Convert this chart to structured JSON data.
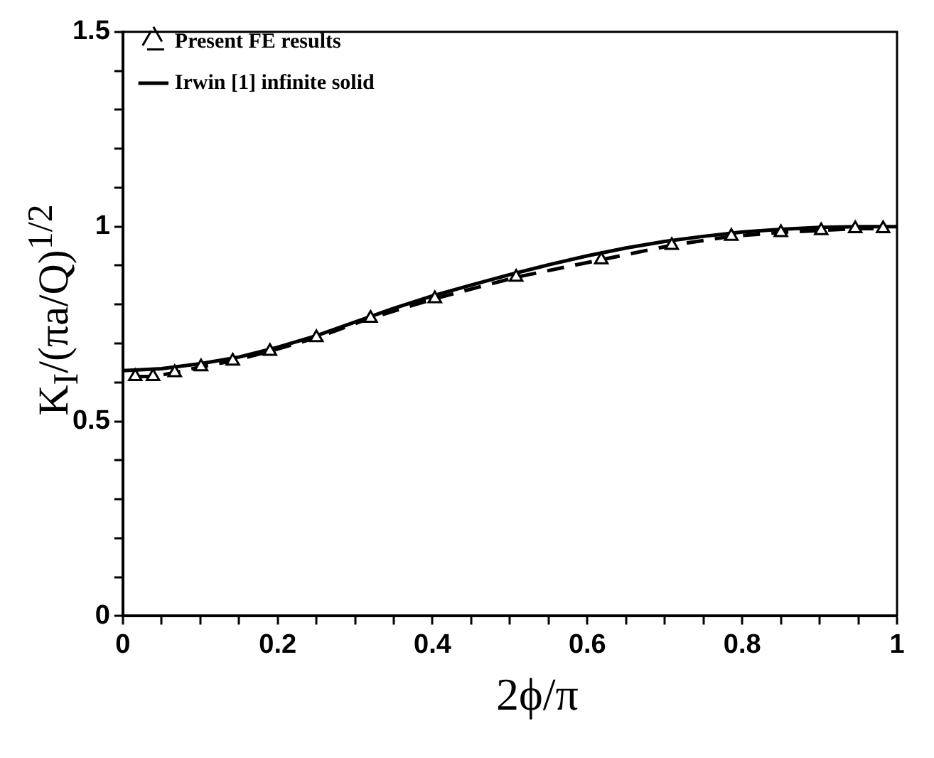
{
  "chart_data": {
    "type": "line",
    "xlabel": "2ϕ/π",
    "ylabel": "K$_{I}$/(πa/Q)$^{1/2}$",
    "xlim": [
      0,
      1
    ],
    "ylim": [
      0,
      1.5
    ],
    "xticks": [
      0,
      {
        "value": 0.05,
        "label": null
      },
      {
        "value": 0.1,
        "label": null
      },
      {
        "value": 0.15,
        "label": null
      },
      0.2,
      {
        "value": 0.25,
        "label": null
      },
      {
        "value": 0.3,
        "label": null
      },
      {
        "value": 0.35,
        "label": null
      },
      0.4,
      {
        "value": 0.45,
        "label": null
      },
      {
        "value": 0.5,
        "label": null
      },
      {
        "value": 0.55,
        "label": null
      },
      0.6,
      {
        "value": 0.65,
        "label": null
      },
      {
        "value": 0.7,
        "label": null
      },
      {
        "value": 0.75,
        "label": null
      },
      0.8,
      {
        "value": 0.85,
        "label": null
      },
      {
        "value": 0.9,
        "label": null
      },
      {
        "value": 0.95,
        "label": null
      },
      1
    ],
    "yticks": [
      0,
      {
        "value": 0.1,
        "label": null
      },
      {
        "value": 0.2,
        "label": null
      },
      {
        "value": 0.3,
        "label": null
      },
      {
        "value": 0.4,
        "label": null
      },
      0.5,
      {
        "value": 0.6,
        "label": null
      },
      {
        "value": 0.7,
        "label": null
      },
      {
        "value": 0.8,
        "label": null
      },
      {
        "value": 0.9,
        "label": null
      },
      1,
      {
        "value": 1.1,
        "label": null
      },
      {
        "value": 1.2,
        "label": null
      },
      {
        "value": 1.3,
        "label": null
      },
      {
        "value": 1.4,
        "label": null
      },
      1.5
    ],
    "grid": false,
    "legend": "top left",
    "series": [
      {
        "name": "Present FE results",
        "color": "#000000",
        "marker": "triangle",
        "line_style": "dashed",
        "x": [
          0.016,
          0.039,
          0.067,
          0.101,
          0.142,
          0.19,
          0.25,
          0.32,
          0.403,
          0.508,
          0.618,
          0.709,
          0.786,
          0.85,
          0.902,
          0.946,
          0.982
        ],
        "values": [
          0.615,
          0.615,
          0.625,
          0.64,
          0.655,
          0.68,
          0.715,
          0.765,
          0.815,
          0.87,
          0.915,
          0.952,
          0.975,
          0.985,
          0.99,
          0.995,
          0.995
        ]
      },
      {
        "name": "Irwin [1] infinite solid",
        "color": "#000000",
        "marker": "none",
        "line_style": "solid",
        "x": [
          0,
          0.05,
          0.1,
          0.15,
          0.2,
          0.25,
          0.3,
          0.35,
          0.4,
          0.45,
          0.5,
          0.55,
          0.6,
          0.65,
          0.7,
          0.75,
          0.8,
          0.85,
          0.9,
          0.95,
          1
        ],
        "values": [
          0.63,
          0.635,
          0.648,
          0.665,
          0.69,
          0.72,
          0.755,
          0.79,
          0.822,
          0.85,
          0.877,
          0.902,
          0.925,
          0.945,
          0.962,
          0.975,
          0.986,
          0.993,
          0.998,
          1.0,
          1.0
        ]
      }
    ]
  }
}
